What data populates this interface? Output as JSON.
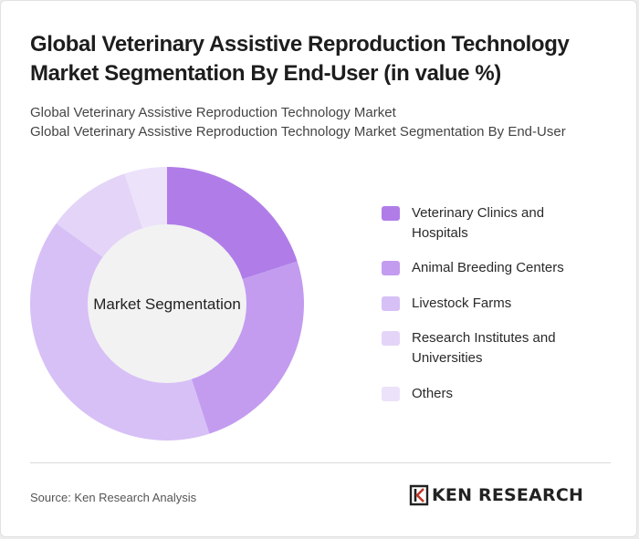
{
  "title": "Global Veterinary Assistive Reproduction Technology Market Segmentation By End-User (in value %)",
  "subtitle_lines": [
    "Global Veterinary Assistive Reproduction Technology Market",
    "Global Veterinary Assistive Reproduction Technology Market Segmentation By End-User"
  ],
  "chart_data": {
    "type": "pie",
    "variant": "donut",
    "center_label": "Market Segmentation",
    "categories": [
      "Veterinary Clinics and Hospitals",
      "Animal Breeding Centers",
      "Livestock Farms",
      "Research Institutes and Universities",
      "Others"
    ],
    "values": [
      20,
      25,
      40,
      10,
      5
    ],
    "colors": [
      "#b07de8",
      "#c39cf0",
      "#d7c0f6",
      "#e4d5f8",
      "#ece2fa"
    ],
    "legend_position": "right"
  },
  "footer": {
    "source": "Source: Ken Research Analysis",
    "brand": "KEN RESEARCH",
    "brand_icon": "ken-research-logo-icon"
  }
}
